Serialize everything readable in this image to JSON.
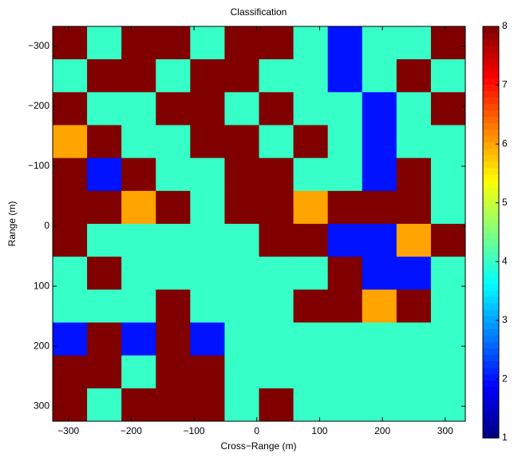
{
  "chart_data": {
    "type": "heatmap",
    "title": "Classification",
    "x_label": "Cross−Range (m)",
    "y_label": "Range (m)",
    "xlim": [
      -325,
      332
    ],
    "ylim": [
      -333,
      325
    ],
    "y_reversed": true,
    "xticks": [
      {
        "value": -300,
        "label": "−300"
      },
      {
        "value": -200,
        "label": "−200"
      },
      {
        "value": -100,
        "label": "−100"
      },
      0,
      100,
      200,
      300
    ],
    "yticks": [
      {
        "value": -300,
        "label": "−300"
      },
      {
        "value": -200,
        "label": "−200"
      },
      {
        "value": -100,
        "label": "−100"
      },
      0,
      100,
      200,
      300
    ],
    "colormap": "jet",
    "clim": [
      1,
      8
    ],
    "cticks": [
      1,
      2,
      3,
      4,
      5,
      6,
      7,
      8
    ],
    "z": [
      [
        8,
        4,
        8,
        8,
        4,
        8,
        8,
        4,
        2,
        4,
        4,
        8
      ],
      [
        4,
        8,
        8,
        4,
        8,
        8,
        4,
        4,
        2,
        4,
        8,
        4
      ],
      [
        8,
        4,
        4,
        8,
        8,
        4,
        8,
        4,
        4,
        2,
        4,
        8
      ],
      [
        6,
        8,
        4,
        4,
        8,
        8,
        4,
        8,
        4,
        2,
        4,
        4
      ],
      [
        8,
        2,
        8,
        4,
        4,
        8,
        8,
        4,
        4,
        2,
        8,
        4
      ],
      [
        8,
        8,
        6,
        8,
        4,
        8,
        8,
        6,
        8,
        8,
        8,
        4
      ],
      [
        8,
        4,
        4,
        4,
        4,
        4,
        8,
        8,
        2,
        2,
        6,
        8
      ],
      [
        4,
        8,
        4,
        4,
        4,
        4,
        4,
        4,
        8,
        2,
        2,
        4
      ],
      [
        4,
        4,
        4,
        8,
        4,
        4,
        4,
        8,
        8,
        6,
        8,
        4
      ],
      [
        2,
        8,
        2,
        8,
        2,
        4,
        4,
        4,
        4,
        4,
        4,
        4
      ],
      [
        8,
        8,
        4,
        8,
        8,
        4,
        4,
        4,
        4,
        4,
        4,
        4
      ],
      [
        8,
        4,
        8,
        8,
        8,
        4,
        8,
        4,
        4,
        4,
        4,
        4
      ]
    ]
  }
}
